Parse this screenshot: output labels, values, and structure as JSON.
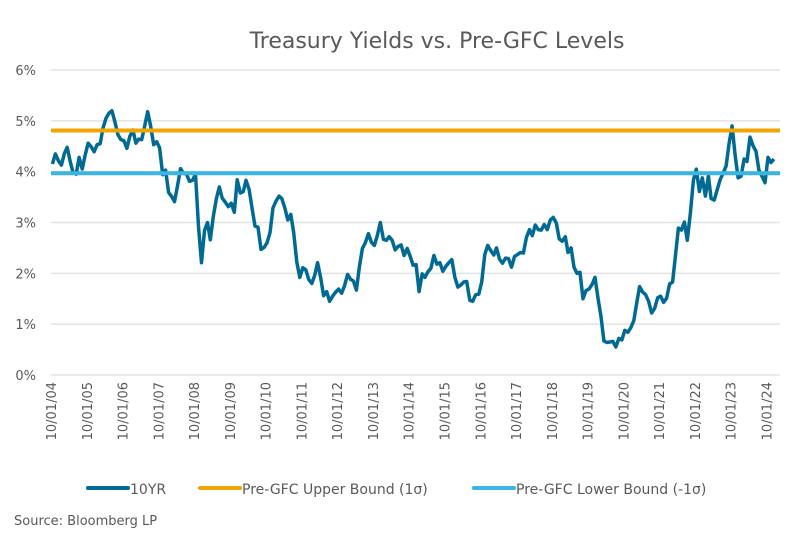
{
  "chart_data": {
    "type": "line",
    "title": "Treasury Yields vs. Pre-GFC Levels",
    "xlabel": "",
    "ylabel": "",
    "ylim": [
      0,
      6
    ],
    "xlim": [
      "2004-10-01",
      "2025-02-15"
    ],
    "yticks": [
      "0%",
      "1%",
      "2%",
      "3%",
      "4%",
      "5%",
      "6%"
    ],
    "xticks": [
      "10/01/04",
      "10/01/05",
      "10/01/06",
      "10/01/07",
      "10/01/08",
      "10/01/09",
      "10/01/10",
      "10/01/11",
      "10/01/12",
      "10/01/13",
      "10/01/14",
      "10/01/15",
      "10/01/16",
      "10/01/17",
      "10/01/18",
      "10/01/19",
      "10/01/20",
      "10/01/21",
      "10/01/22",
      "10/01/23",
      "10/01/24"
    ],
    "grid": "horizontal",
    "legend_position": "bottom",
    "series": [
      {
        "name": "10YR",
        "color": "#006a94",
        "start": "2004-10",
        "frequency": "monthly",
        "values": [
          4.15,
          4.35,
          4.22,
          4.13,
          4.36,
          4.48,
          4.2,
          3.98,
          3.95,
          4.28,
          4.05,
          4.33,
          4.56,
          4.49,
          4.39,
          4.53,
          4.55,
          4.85,
          5.05,
          5.15,
          5.2,
          4.98,
          4.73,
          4.63,
          4.61,
          4.46,
          4.7,
          4.82,
          4.56,
          4.64,
          4.63,
          4.89,
          5.18,
          4.9,
          4.53,
          4.59,
          4.47,
          3.94,
          4.03,
          3.59,
          3.51,
          3.41,
          3.73,
          4.06,
          3.97,
          3.95,
          3.81,
          3.83,
          3.95,
          2.92,
          2.21,
          2.84,
          3.0,
          2.66,
          3.12,
          3.46,
          3.7,
          3.48,
          3.4,
          3.31,
          3.38,
          3.2,
          3.84,
          3.58,
          3.61,
          3.83,
          3.65,
          3.29,
          2.93,
          2.91,
          2.47,
          2.51,
          2.6,
          2.8,
          3.29,
          3.42,
          3.52,
          3.47,
          3.29,
          3.05,
          3.16,
          2.8,
          2.22,
          1.92,
          2.11,
          2.07,
          1.88,
          1.8,
          1.97,
          2.21,
          1.91,
          1.56,
          1.64,
          1.45,
          1.55,
          1.63,
          1.69,
          1.61,
          1.76,
          1.98,
          1.88,
          1.85,
          1.67,
          2.13,
          2.49,
          2.6,
          2.78,
          2.61,
          2.55,
          2.75,
          3.0,
          2.67,
          2.65,
          2.72,
          2.65,
          2.46,
          2.53,
          2.56,
          2.35,
          2.49,
          2.34,
          2.16,
          2.17,
          1.64,
          1.99,
          1.92,
          2.03,
          2.1,
          2.35,
          2.18,
          2.21,
          2.04,
          2.14,
          2.21,
          2.27,
          1.92,
          1.73,
          1.77,
          1.83,
          1.84,
          1.47,
          1.45,
          1.58,
          1.59,
          1.83,
          2.37,
          2.55,
          2.45,
          2.36,
          2.5,
          2.28,
          2.2,
          2.3,
          2.29,
          2.12,
          2.33,
          2.37,
          2.41,
          2.4,
          2.71,
          2.86,
          2.74,
          2.95,
          2.86,
          2.85,
          2.96,
          2.86,
          3.05,
          3.1,
          2.99,
          2.68,
          2.63,
          2.72,
          2.41,
          2.5,
          2.12,
          2.0,
          2.02,
          1.5,
          1.66,
          1.69,
          1.78,
          1.92,
          1.51,
          1.15,
          0.67,
          0.64,
          0.65,
          0.66,
          0.55,
          0.72,
          0.69,
          0.88,
          0.84,
          0.93,
          1.07,
          1.44,
          1.74,
          1.63,
          1.58,
          1.45,
          1.22,
          1.31,
          1.52,
          1.55,
          1.43,
          1.51,
          1.79,
          1.83,
          2.34,
          2.89,
          2.85,
          3.01,
          2.65,
          3.19,
          3.83,
          4.05,
          3.61,
          3.88,
          3.52,
          3.92,
          3.47,
          3.44,
          3.64,
          3.84,
          3.97,
          4.11,
          4.57,
          4.9,
          4.33,
          3.88,
          3.91,
          4.25,
          4.2,
          4.68,
          4.51,
          4.4,
          4.03,
          3.91,
          3.78,
          4.28,
          4.18,
          4.25
        ]
      },
      {
        "name": "Pre-GFC Upper Bound (1σ)",
        "color": "#f2a400",
        "constant": 4.81
      },
      {
        "name": "Pre-GFC Lower Bound (-1σ)",
        "color": "#3cb4e5",
        "constant": 3.97
      }
    ]
  },
  "source": "Source: Bloomberg LP"
}
